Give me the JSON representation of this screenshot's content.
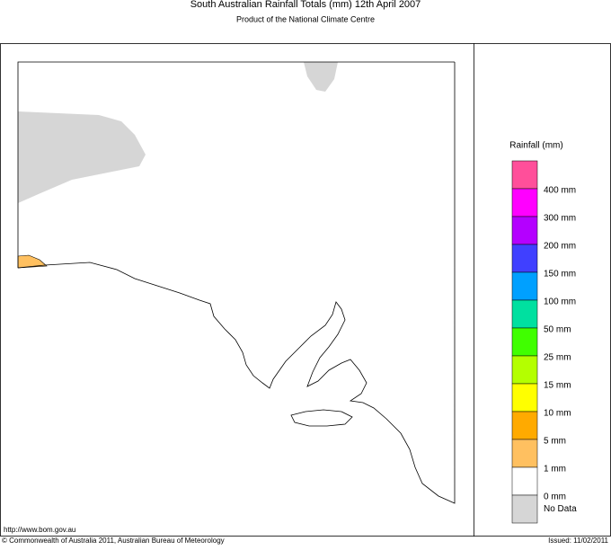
{
  "header": {
    "title": "South Australian Rainfall Totals (mm)    12th April 2007",
    "subtitle": "Product of the National Climate Centre"
  },
  "legend": {
    "title": "Rainfall (mm)",
    "swatches": [
      "#ff4f9a",
      "#ff00ff",
      "#b400ff",
      "#4040ff",
      "#00a0ff",
      "#00e0a0",
      "#40ff00",
      "#b4ff00",
      "#ffff00",
      "#ffaa00",
      "#ffc060",
      "#ffffff",
      "#d6d6d6"
    ],
    "labels": [
      "400 mm",
      "300 mm",
      "200 mm",
      "150 mm",
      "100 mm",
      "50 mm",
      "25 mm",
      "15 mm",
      "10 mm",
      "5 mm",
      "1 mm",
      "0 mm",
      "No Data"
    ]
  },
  "footer": {
    "url": "http://www.bom.gov.au",
    "copyright": "© Commonwealth of Australia 2011, Australian Bureau of Meteorology",
    "issued": "Issued: 11/02/2011"
  }
}
